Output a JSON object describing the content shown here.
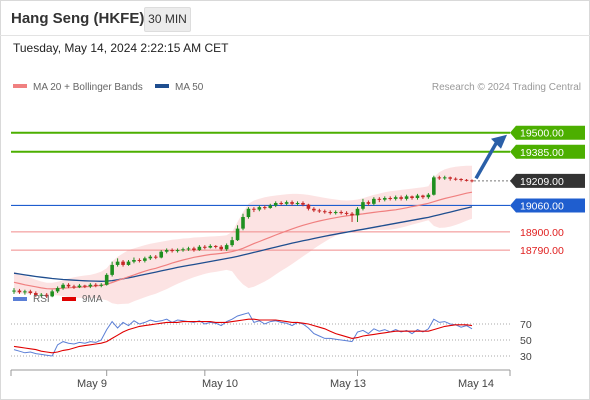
{
  "header": {
    "instrument": "Hang Seng (HKFE)",
    "timeframe": "30 MIN"
  },
  "datetime": "Tuesday, May 14, 2024 2:22:15 AM CET",
  "copyright": "Research © 2024 Trading Central",
  "colors": {
    "up": "#1f8f1f",
    "down": "#c62828",
    "resistance": "#4caf00",
    "support": "#1f5ecf",
    "level": "#f08a8a",
    "ma20": "#f08080",
    "ma50": "#1f4e8f",
    "band_fill": "#fcdede",
    "rsi": "#5b7fd6",
    "rsi_ma": "#e00000",
    "arrow": "#2a5fa8",
    "last": "#333333"
  },
  "chart_data": [
    {
      "type": "candlestick",
      "legend": [
        {
          "name": "MA 20 + Bollinger Bands",
          "color": "#f08080"
        },
        {
          "name": "MA 50",
          "color": "#1f4e8f"
        }
      ],
      "ylim": [
        18500,
        19680
      ],
      "x_labels": [
        "May 9",
        "May 10",
        "May 13",
        "May 14"
      ],
      "levels": [
        {
          "value": 19500.0,
          "label": "19500.00",
          "kind": "resistance"
        },
        {
          "value": 19385.0,
          "label": "19385.00",
          "kind": "resistance"
        },
        {
          "value": 19209.0,
          "label": "19209.00",
          "kind": "last"
        },
        {
          "value": 19060.0,
          "label": "19060.00",
          "kind": "support"
        },
        {
          "value": 18900.0,
          "label": "18900.00",
          "kind": "level"
        },
        {
          "value": 18790.0,
          "label": "18790.00",
          "kind": "level"
        }
      ],
      "candles": [
        [
          18540,
          18545,
          18525,
          18560
        ],
        [
          18545,
          18535,
          18525,
          18555
        ],
        [
          18535,
          18540,
          18520,
          18550
        ],
        [
          18540,
          18530,
          18520,
          18550
        ],
        [
          18530,
          18515,
          18505,
          18540
        ],
        [
          18515,
          18520,
          18505,
          18530
        ],
        [
          18520,
          18510,
          18500,
          18530
        ],
        [
          18510,
          18540,
          18505,
          18550
        ],
        [
          18540,
          18560,
          18530,
          18570
        ],
        [
          18560,
          18580,
          18550,
          18590
        ],
        [
          18580,
          18570,
          18560,
          18590
        ],
        [
          18570,
          18565,
          18555,
          18580
        ],
        [
          18565,
          18575,
          18560,
          18585
        ],
        [
          18575,
          18570,
          18560,
          18580
        ],
        [
          18570,
          18580,
          18560,
          18590
        ],
        [
          18580,
          18575,
          18565,
          18590
        ],
        [
          18575,
          18580,
          18565,
          18590
        ],
        [
          18580,
          18640,
          18575,
          18650
        ],
        [
          18640,
          18700,
          18630,
          18720
        ],
        [
          18700,
          18720,
          18690,
          18740
        ],
        [
          18720,
          18700,
          18690,
          18730
        ],
        [
          18700,
          18720,
          18695,
          18730
        ],
        [
          18720,
          18730,
          18710,
          18745
        ],
        [
          18730,
          18725,
          18715,
          18740
        ],
        [
          18725,
          18740,
          18715,
          18750
        ],
        [
          18740,
          18750,
          18730,
          18760
        ],
        [
          18750,
          18745,
          18735,
          18760
        ],
        [
          18745,
          18780,
          18740,
          18790
        ],
        [
          18780,
          18790,
          18770,
          18800
        ],
        [
          18790,
          18785,
          18775,
          18800
        ],
        [
          18785,
          18790,
          18775,
          18800
        ],
        [
          18790,
          18795,
          18780,
          18805
        ],
        [
          18795,
          18800,
          18785,
          18810
        ],
        [
          18800,
          18790,
          18780,
          18810
        ],
        [
          18790,
          18810,
          18785,
          18820
        ],
        [
          18810,
          18805,
          18795,
          18820
        ],
        [
          18805,
          18815,
          18800,
          18825
        ],
        [
          18815,
          18810,
          18800,
          18820
        ],
        [
          18810,
          18795,
          18785,
          18820
        ],
        [
          18795,
          18820,
          18785,
          18830
        ],
        [
          18820,
          18850,
          18810,
          18870
        ],
        [
          18850,
          18920,
          18845,
          18940
        ],
        [
          18920,
          18990,
          18910,
          19010
        ],
        [
          18990,
          19040,
          18980,
          19050
        ],
        [
          19040,
          19035,
          19020,
          19050
        ],
        [
          19035,
          19050,
          19025,
          19060
        ],
        [
          19050,
          19045,
          19035,
          19060
        ],
        [
          19045,
          19060,
          19040,
          19070
        ],
        [
          19060,
          19075,
          19050,
          19085
        ],
        [
          19075,
          19070,
          19060,
          19085
        ],
        [
          19070,
          19080,
          19060,
          19090
        ],
        [
          19080,
          19070,
          19060,
          19090
        ],
        [
          19070,
          19075,
          19060,
          19085
        ],
        [
          19075,
          19065,
          19055,
          19085
        ],
        [
          19065,
          19040,
          19030,
          19070
        ],
        [
          19040,
          19030,
          19020,
          19050
        ],
        [
          19030,
          19025,
          19015,
          19040
        ],
        [
          19025,
          19020,
          19010,
          19035
        ],
        [
          19020,
          19015,
          19005,
          19030
        ],
        [
          19015,
          19020,
          19005,
          19030
        ],
        [
          19020,
          19015,
          19005,
          19030
        ],
        [
          19015,
          19010,
          19000,
          19025
        ],
        [
          19010,
          19000,
          18960,
          19020
        ],
        [
          19000,
          19040,
          18960,
          19050
        ],
        [
          19040,
          19080,
          19030,
          19100
        ],
        [
          19080,
          19070,
          19060,
          19090
        ],
        [
          19070,
          19100,
          19060,
          19110
        ],
        [
          19100,
          19095,
          19080,
          19110
        ],
        [
          19095,
          19105,
          19085,
          19115
        ],
        [
          19105,
          19100,
          19090,
          19115
        ],
        [
          19100,
          19110,
          19090,
          19120
        ],
        [
          19110,
          19100,
          19090,
          19120
        ],
        [
          19100,
          19115,
          19090,
          19125
        ],
        [
          19115,
          19105,
          19095,
          19120
        ],
        [
          19105,
          19120,
          19095,
          19130
        ],
        [
          19120,
          19110,
          19100,
          19125
        ],
        [
          19110,
          19125,
          19100,
          19135
        ],
        [
          19125,
          19230,
          19120,
          19240
        ],
        [
          19230,
          19225,
          19215,
          19240
        ],
        [
          19225,
          19230,
          19215,
          19240
        ],
        [
          19230,
          19222,
          19210,
          19235
        ],
        [
          19222,
          19220,
          19210,
          19230
        ],
        [
          19220,
          19215,
          19205,
          19225
        ],
        [
          19215,
          19212,
          19205,
          19220
        ],
        [
          19212,
          19209,
          19200,
          19218
        ]
      ],
      "ma20": [
        18595,
        18588,
        18580,
        18574,
        18568,
        18561,
        18556,
        18555,
        18557,
        18560,
        18562,
        18564,
        18566,
        18567,
        18570,
        18573,
        18576,
        18583,
        18594,
        18606,
        18617,
        18628,
        18640,
        18651,
        18662,
        18672,
        18680,
        18690,
        18700,
        18711,
        18721,
        18730,
        18738,
        18746,
        18752,
        18758,
        18763,
        18766,
        18770,
        18775,
        18781,
        18789,
        18801,
        18815,
        18829,
        18842,
        18855,
        18868,
        18881,
        18894,
        18906,
        18918,
        18929,
        18940,
        18949,
        18958,
        18966,
        18973,
        18980,
        18986,
        18992,
        18997,
        19001,
        19005,
        19009,
        19014,
        19018,
        19022,
        19026,
        19030,
        19034,
        19040,
        19046,
        19053,
        19059,
        19066,
        19073,
        19083,
        19093,
        19102,
        19110,
        19118,
        19126,
        19134,
        19140
      ],
      "upper_band": [
        18660,
        18648,
        18636,
        18622,
        18610,
        18600,
        18592,
        18592,
        18598,
        18608,
        18618,
        18626,
        18632,
        18636,
        18640,
        18648,
        18660,
        18680,
        18720,
        18750,
        18770,
        18790,
        18800,
        18810,
        18820,
        18828,
        18834,
        18840,
        18846,
        18852,
        18856,
        18860,
        18862,
        18866,
        18868,
        18870,
        18872,
        18874,
        18876,
        18880,
        18900,
        18960,
        19020,
        19070,
        19090,
        19100,
        19110,
        19116,
        19120,
        19124,
        19128,
        19130,
        19130,
        19128,
        19124,
        19118,
        19112,
        19106,
        19100,
        19096,
        19092,
        19090,
        19092,
        19096,
        19104,
        19114,
        19124,
        19132,
        19140,
        19146,
        19150,
        19154,
        19158,
        19162,
        19166,
        19170,
        19176,
        19230,
        19262,
        19278,
        19288,
        19294,
        19298,
        19300,
        19300
      ],
      "lower_band": [
        18530,
        18528,
        18524,
        18526,
        18526,
        18522,
        18520,
        18518,
        18516,
        18512,
        18506,
        18502,
        18500,
        18498,
        18500,
        18498,
        18492,
        18486,
        18468,
        18462,
        18464,
        18466,
        18480,
        18492,
        18504,
        18516,
        18526,
        18540,
        18554,
        18570,
        18586,
        18600,
        18614,
        18626,
        18636,
        18646,
        18654,
        18658,
        18664,
        18670,
        18662,
        18618,
        18582,
        18560,
        18568,
        18584,
        18600,
        18620,
        18642,
        18664,
        18684,
        18706,
        18728,
        18752,
        18774,
        18798,
        18820,
        18840,
        18860,
        18876,
        18892,
        18904,
        18910,
        18914,
        18914,
        18914,
        18912,
        18912,
        18912,
        18914,
        18918,
        18926,
        18934,
        18944,
        18952,
        18962,
        18970,
        18936,
        18924,
        18926,
        18932,
        18942,
        18954,
        18968,
        18980
      ],
      "ma50": [
        18650,
        18645,
        18640,
        18635,
        18630,
        18626,
        18622,
        18618,
        18615,
        18612,
        18610,
        18608,
        18606,
        18604,
        18603,
        18602,
        18601,
        18602,
        18605,
        18610,
        18616,
        18622,
        18629,
        18636,
        18643,
        18650,
        18657,
        18664,
        18671,
        18678,
        18685,
        18691,
        18697,
        18703,
        18709,
        18715,
        18721,
        18727,
        18733,
        18739,
        18745,
        18752,
        18760,
        18768,
        18776,
        18784,
        18792,
        18800,
        18808,
        18816,
        18824,
        18832,
        18839,
        18846,
        18853,
        18860,
        18867,
        18874,
        18880,
        18886,
        18892,
        18898,
        18904,
        18910,
        18916,
        18922,
        18928,
        18934,
        18940,
        18946,
        18952,
        18958,
        18964,
        18970,
        18976,
        18982,
        18988,
        18996,
        19004,
        19012,
        19020,
        19028,
        19036,
        19044,
        19052
      ]
    },
    {
      "type": "line",
      "legend": [
        {
          "name": "RSI",
          "color": "#5b7fd6"
        },
        {
          "name": "9MA",
          "color": "#e00000"
        }
      ],
      "ylim": [
        10,
        90
      ],
      "ticks": [
        70,
        50,
        30
      ],
      "x_labels": [
        "May 9",
        "May 10",
        "May 13",
        "May 14"
      ],
      "series": [
        {
          "name": "RSI",
          "values": [
            38,
            36,
            34,
            35,
            33,
            32,
            31,
            30,
            44,
            48,
            46,
            45,
            47,
            46,
            48,
            47,
            50,
            63,
            73,
            65,
            72,
            68,
            74,
            70,
            72,
            75,
            73,
            74,
            76,
            72,
            75,
            74,
            73,
            72,
            74,
            70,
            72,
            71,
            68,
            73,
            76,
            80,
            82,
            84,
            72,
            74,
            70,
            73,
            74,
            72,
            71,
            68,
            72,
            70,
            65,
            58,
            55,
            52,
            52,
            51,
            50,
            49,
            48,
            60,
            62,
            58,
            64,
            61,
            63,
            60,
            63,
            60,
            62,
            58,
            63,
            60,
            64,
            76,
            72,
            73,
            70,
            69,
            66,
            68,
            64
          ]
        },
        {
          "name": "9MA",
          "values": [
            42,
            41,
            40,
            39,
            38,
            36,
            35,
            34,
            35,
            37,
            38,
            40,
            42,
            43,
            44,
            45,
            46,
            48,
            52,
            56,
            60,
            63,
            65,
            67,
            68,
            69,
            70,
            71,
            72,
            72,
            72,
            73,
            73,
            73,
            73,
            73,
            73,
            72,
            72,
            72,
            73,
            74,
            75,
            76,
            76,
            75,
            75,
            75,
            75,
            74,
            73,
            72,
            72,
            71,
            70,
            68,
            66,
            64,
            61,
            58,
            56,
            54,
            52,
            53,
            55,
            56,
            57,
            58,
            59,
            60,
            61,
            61,
            61,
            61,
            61,
            61,
            61,
            63,
            65,
            67,
            68,
            69,
            69,
            69,
            68
          ]
        }
      ]
    }
  ]
}
